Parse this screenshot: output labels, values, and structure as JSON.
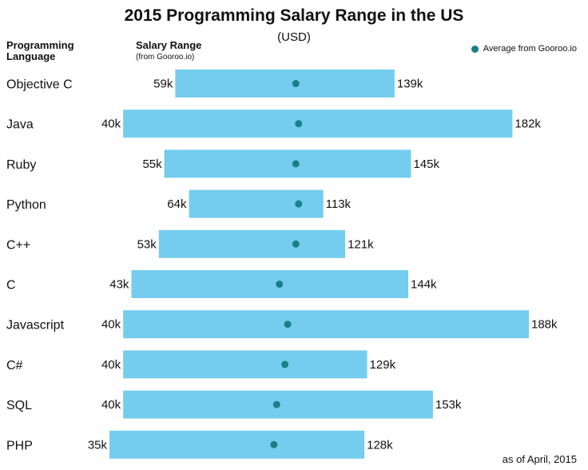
{
  "chart_data": {
    "type": "bar",
    "title": "2015 Programming Salary Range in the US",
    "subtitle": "(USD)",
    "column_headers": {
      "language": "Programming Language",
      "range": "Salary Range",
      "range_source": "(from Gooroo.io)"
    },
    "legend": {
      "label": "Average from Gooroo.io",
      "placement": "top-right"
    },
    "footnote": "as of April, 2015",
    "unit": "k",
    "categories": [
      "Objective C",
      "Java",
      "Ruby",
      "Python",
      "C++",
      "C",
      "Javascript",
      "C#",
      "SQL",
      "PHP"
    ],
    "series": [
      {
        "name": "min",
        "values": [
          59,
          40,
          55,
          64,
          53,
          43,
          40,
          40,
          40,
          35
        ]
      },
      {
        "name": "max",
        "values": [
          139,
          182,
          145,
          113,
          121,
          144,
          188,
          129,
          153,
          128
        ]
      },
      {
        "name": "Average from Gooroo.io",
        "values": [
          103,
          104,
          103,
          104,
          103,
          97,
          100,
          99,
          96,
          95
        ]
      }
    ],
    "min_labels": [
      "59k",
      "40k",
      "55k",
      "64k",
      "53k",
      "43k",
      "40k",
      "40k",
      "40k",
      "35k"
    ],
    "max_labels": [
      "139k",
      "182k",
      "145k",
      "113k",
      "121k",
      "144k",
      "188k",
      "129k",
      "153k",
      "128k"
    ],
    "xlim": [
      35,
      188
    ],
    "grid": false
  },
  "colors": {
    "bar": "#74cdee",
    "average_dot": "#1a7f87"
  }
}
